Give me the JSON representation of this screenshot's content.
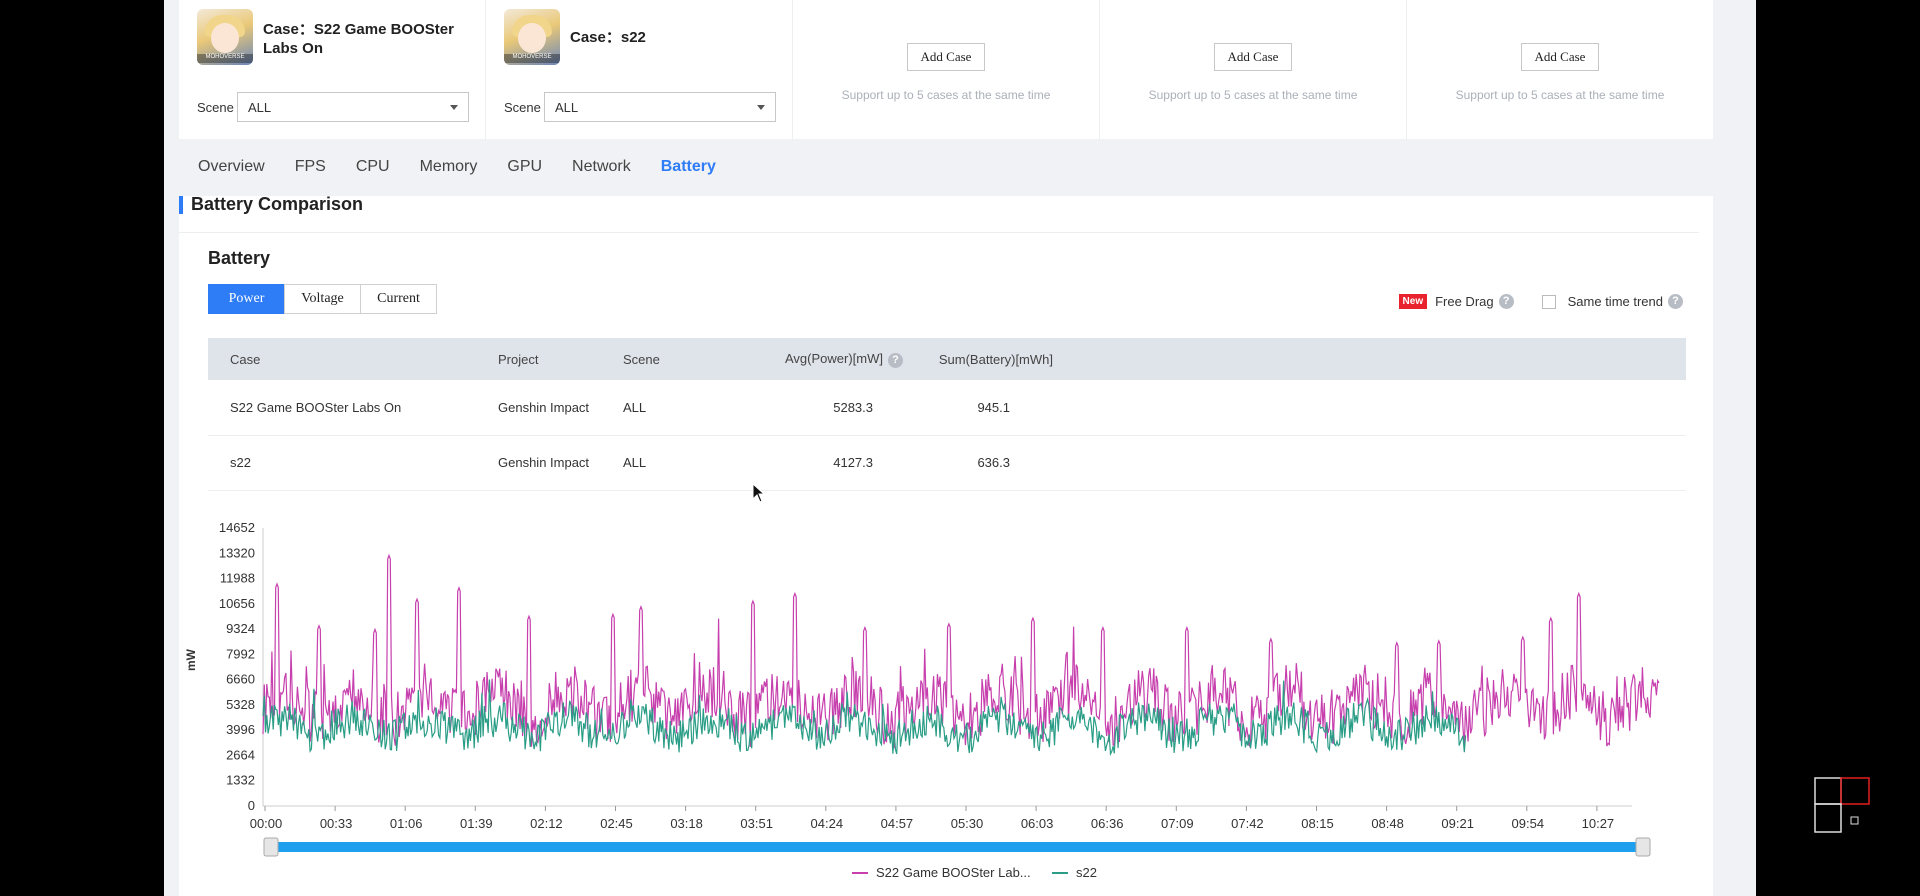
{
  "cases": [
    {
      "title": "Case：S22 Game BOOSter Labs On",
      "scene_label": "Scene",
      "scene_value": "ALL",
      "thumb_tag": "MOHOVERSE"
    },
    {
      "title": "Case：s22",
      "scene_label": "Scene",
      "scene_value": "ALL",
      "thumb_tag": "MOHOVERSE"
    }
  ],
  "add_slots": [
    {
      "button": "Add Case",
      "hint": "Support up to 5 cases at the same time"
    },
    {
      "button": "Add Case",
      "hint": "Support up to 5 cases at the same time"
    },
    {
      "button": "Add Case",
      "hint": "Support up to 5 cases at the same time"
    }
  ],
  "nav": [
    "Overview",
    "FPS",
    "CPU",
    "Memory",
    "GPU",
    "Network",
    "Battery"
  ],
  "nav_active": "Battery",
  "section_title": "Battery Comparison",
  "battery_title": "Battery",
  "metric_tabs": [
    "Power",
    "Voltage",
    "Current"
  ],
  "metric_active": "Power",
  "options": {
    "new_badge": "New",
    "free_drag": "Free Drag",
    "same_trend": "Same time trend",
    "help": "?"
  },
  "table": {
    "headers": [
      "Case",
      "Project",
      "Scene",
      "Avg(Power)[mW]",
      "Sum(Battery)[mWh]"
    ],
    "rows": [
      [
        "S22 Game BOOSter Labs On",
        "Genshin Impact",
        "ALL",
        "5283.3",
        "945.1"
      ],
      [
        "s22",
        "Genshin Impact",
        "ALL",
        "4127.3",
        "636.3"
      ]
    ]
  },
  "colors": {
    "accent": "#2e7cf6",
    "series1": "#c63fad",
    "series2": "#2a9d86",
    "slider": "#1ea0ef"
  },
  "chart_data": {
    "type": "line",
    "ylabel": "mW",
    "y_ticks": [
      0,
      1332,
      2664,
      3996,
      5328,
      6660,
      7992,
      9324,
      10656,
      11988,
      13320,
      14652
    ],
    "ylim": [
      0,
      14652
    ],
    "x_ticks": [
      "00:00",
      "00:33",
      "01:06",
      "01:39",
      "02:12",
      "02:45",
      "03:18",
      "03:51",
      "04:24",
      "04:57",
      "05:30",
      "06:03",
      "06:36",
      "07:09",
      "07:42",
      "08:15",
      "08:48",
      "09:21",
      "09:54",
      "10:27"
    ],
    "grid": false,
    "legend_position": "bottom",
    "series": [
      {
        "name": "S22 Game BOOSter Lab...",
        "duration": "10:50",
        "avg": 5283.3,
        "peaks": [
          [
            0.01,
            11700
          ],
          [
            0.04,
            9500
          ],
          [
            0.08,
            9300
          ],
          [
            0.09,
            13200
          ],
          [
            0.11,
            10900
          ],
          [
            0.14,
            11500
          ],
          [
            0.19,
            10000
          ],
          [
            0.25,
            10100
          ],
          [
            0.27,
            10500
          ],
          [
            0.35,
            10800
          ],
          [
            0.38,
            11200
          ],
          [
            0.43,
            9400
          ],
          [
            0.49,
            9600
          ],
          [
            0.55,
            9900
          ],
          [
            0.6,
            9400
          ],
          [
            0.66,
            9400
          ],
          [
            0.72,
            8800
          ],
          [
            0.81,
            8600
          ],
          [
            0.84,
            8700
          ],
          [
            0.9,
            8900
          ],
          [
            0.92,
            9900
          ],
          [
            0.94,
            11200
          ]
        ]
      },
      {
        "name": "s22",
        "duration": "09:06",
        "avg": 4127.3
      }
    ]
  }
}
